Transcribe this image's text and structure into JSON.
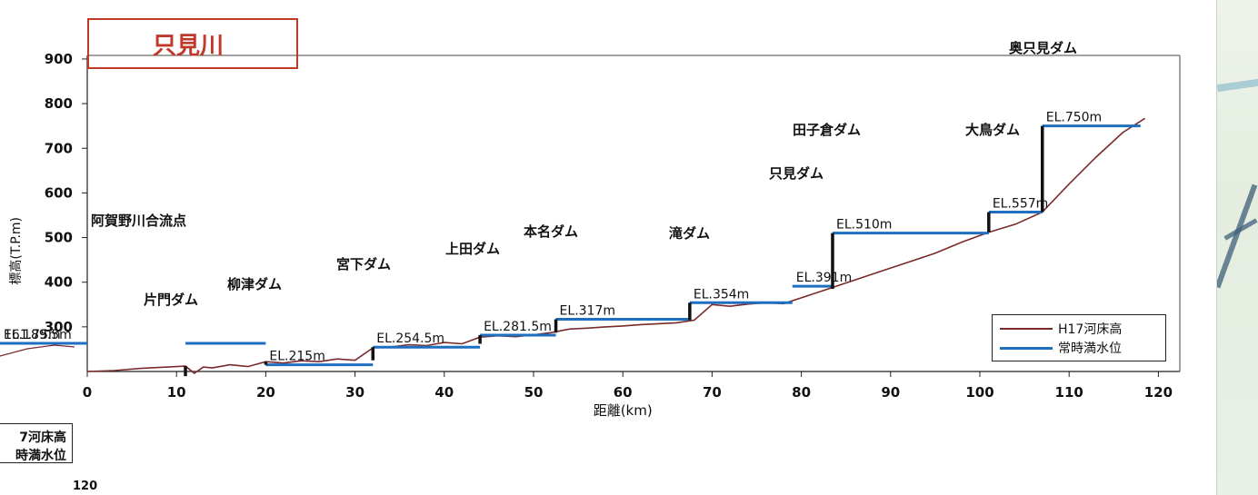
{
  "title": "只見川",
  "chart_data": {
    "type": "line",
    "xlabel": "距離(km)",
    "ylabel": "標高(T.P.m)",
    "xlim": [
      0,
      120
    ],
    "ylim": [
      200,
      900
    ],
    "x_ticks": [
      0,
      10,
      20,
      30,
      40,
      50,
      60,
      70,
      80,
      90,
      100,
      110,
      120
    ],
    "y_ticks": [
      300,
      400,
      500,
      600,
      700,
      800,
      900
    ],
    "grid": false,
    "legend_placement": "bottom-right",
    "colors": {
      "riverbed": "#7a2a2a",
      "water_level": "#1e6fc0",
      "dam": "#111111"
    },
    "series": [
      {
        "name": "H17河床高",
        "x": [
          0,
          3,
          6,
          9,
          11,
          12,
          13,
          14,
          16,
          18,
          20,
          22,
          24,
          26,
          28,
          30,
          32,
          34,
          36,
          38,
          40,
          42,
          44,
          46,
          48,
          50,
          52,
          54,
          56,
          58,
          60,
          62,
          64,
          66,
          68,
          70,
          72,
          74,
          76,
          78,
          80,
          83,
          86,
          89,
          92,
          95,
          98,
          101,
          104,
          107,
          110,
          113,
          116,
          118.5
        ],
        "y": [
          200,
          202,
          207,
          210,
          212,
          196,
          210,
          208,
          215,
          211,
          222,
          219,
          224,
          222,
          228,
          225,
          253,
          255,
          260,
          258,
          265,
          262,
          277,
          280,
          278,
          282,
          287,
          295,
          297,
          300,
          302,
          305,
          307,
          309,
          315,
          350,
          346,
          351,
          354,
          352,
          365,
          385,
          405,
          425,
          445,
          465,
          490,
          512,
          530,
          557,
          620,
          680,
          735,
          767
        ]
      },
      {
        "name": "常時満水位",
        "segments": [
          {
            "label": "161.75m",
            "value": 161.75,
            "x_from": -10,
            "x_to": 0
          },
          {
            "label": "EL.189.5m",
            "value": 189.5,
            "x_from": 11,
            "x_to": 20
          },
          {
            "label": "EL.215m",
            "value": 215,
            "x_from": 20,
            "x_to": 32
          },
          {
            "label": "EL.254.5m",
            "value": 254.5,
            "x_from": 32,
            "x_to": 44
          },
          {
            "label": "EL.281.5m",
            "value": 281.5,
            "x_from": 44,
            "x_to": 52.5
          },
          {
            "label": "EL.317m",
            "value": 317,
            "x_from": 52.5,
            "x_to": 67.5
          },
          {
            "label": "EL.354m",
            "value": 354,
            "x_from": 67.5,
            "x_to": 79
          },
          {
            "label": "EL.391m",
            "value": 391,
            "x_from": 79,
            "x_to": 83.5
          },
          {
            "label": "EL.510m",
            "value": 510,
            "x_from": 83.5,
            "x_to": 101
          },
          {
            "label": "EL.557m",
            "value": 557,
            "x_from": 101,
            "x_to": 107
          },
          {
            "label": "EL.750m",
            "value": 750,
            "x_from": 107,
            "x_to": 118
          }
        ]
      }
    ],
    "dams": [
      {
        "name": "片門ダム",
        "x": 11,
        "from": 189.5,
        "to": 212
      },
      {
        "name": "柳津ダム",
        "x": 20,
        "from": 215,
        "to": 222
      },
      {
        "name": "宮下ダム",
        "x": 32,
        "from": 225,
        "to": 254.5
      },
      {
        "name": "上田ダム",
        "x": 44,
        "from": 262,
        "to": 281.5
      },
      {
        "name": "本名ダム",
        "x": 52.5,
        "from": 287,
        "to": 317
      },
      {
        "name": "滝ダム",
        "x": 67.5,
        "from": 315,
        "to": 354
      },
      {
        "name": "只見ダム",
        "x": 83.5,
        "from": 385,
        "to": 510
      },
      {
        "name": "田子倉ダム",
        "x": 83.5,
        "from": 391,
        "to": 510
      },
      {
        "name": "大鳥ダム",
        "x": 101,
        "from": 512,
        "to": 557
      },
      {
        "name": "奥只見ダム",
        "x": 107,
        "from": 557,
        "to": 750
      }
    ],
    "annotations": [
      {
        "text": "阿賀野川合流点",
        "x": 0,
        "y": 400
      }
    ]
  },
  "side_legend": {
    "line1": "7河床高",
    "line2": "時満水位"
  },
  "stray_label": "120"
}
